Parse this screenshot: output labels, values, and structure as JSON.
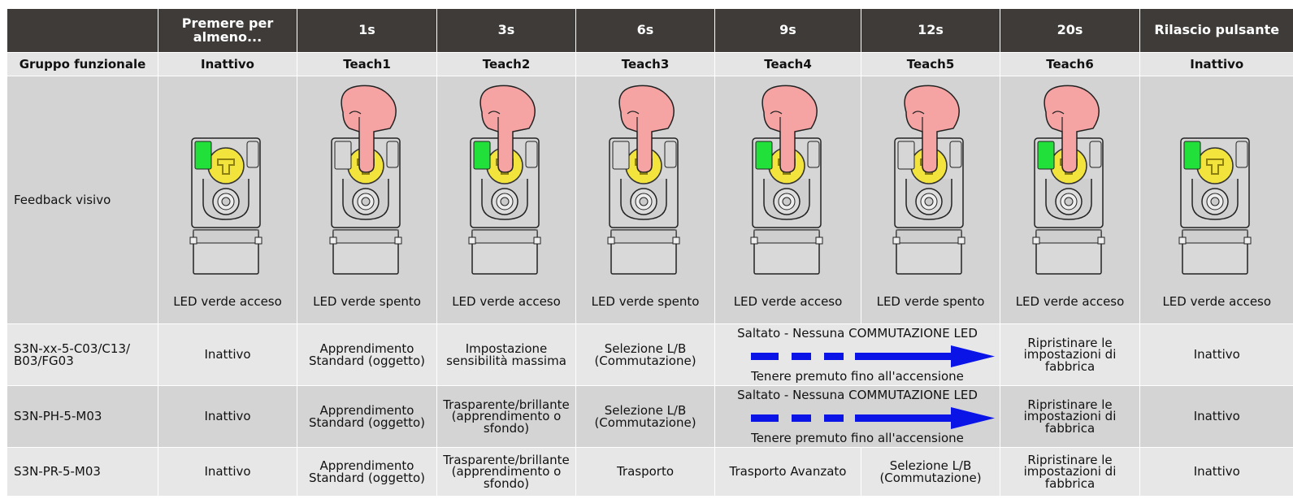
{
  "header": {
    "columns": [
      "Premere per almeno...",
      "1s",
      "3s",
      "6s",
      "9s",
      "12s",
      "20s",
      "Rilascio pulsante"
    ]
  },
  "subheader": {
    "label": "Gruppo funzionale",
    "columns": [
      "Inattivo",
      "Teach1",
      "Teach2",
      "Teach3",
      "Teach4",
      "Teach5",
      "Teach6",
      "Inattivo"
    ]
  },
  "feedback": {
    "label": "Feedback visivo",
    "captions": [
      "LED verde acceso",
      "LED verde spento",
      "LED verde acceso",
      "LED verde spento",
      "LED verde acceso",
      "LED verde spento",
      "LED verde acceso",
      "LED verde acceso"
    ]
  },
  "rows": [
    {
      "label": "S3N-xx-5-C03/C13/ B03/FG03",
      "cells": [
        "Inattivo",
        "Apprendimento Standard (oggetto)",
        "Impostazione sensibilità massima",
        "Selezione L/B (Commutazione)",
        {
          "top": "Saltato - Nessuna COMMUTAZIONE LED",
          "bottom": "Tenere premuto fino all'accensione"
        },
        "Ripristinare le impostazioni di fabbrica",
        "Inattivo"
      ]
    },
    {
      "label": "S3N-PH-5-M03",
      "cells": [
        "Inattivo",
        "Apprendimento Standard (oggetto)",
        "Trasparente/brillante (apprendimento o sfondo)",
        "Selezione L/B (Commutazione)",
        {
          "top": "Saltato - Nessuna COMMUTAZIONE LED",
          "bottom": "Tenere premuto fino all'accensione"
        },
        "Ripristinare le impostazioni di fabbrica",
        "Inattivo"
      ]
    },
    {
      "label": "S3N-PR-5-M03",
      "cells": [
        "Inattivo",
        "Apprendimento Standard (oggetto)",
        "Trasparente/brillante (apprendimento o sfondo)",
        "Trasporto",
        "Trasporto Avanzato",
        "Selezione L/B (Commutazione)",
        "Ripristinare le impostazioni di fabbrica",
        "Inattivo"
      ]
    }
  ]
}
